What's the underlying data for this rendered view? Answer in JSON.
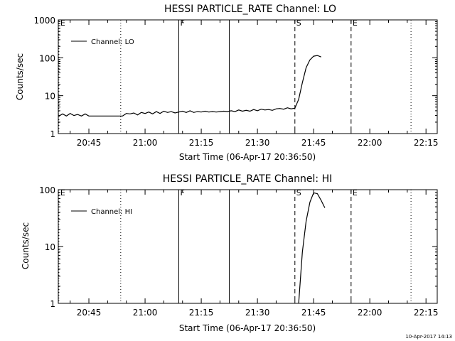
{
  "timestamp": "10-Apr-2017 14:13",
  "chart_data": [
    {
      "type": "line",
      "title": "HESSI PARTICLE_RATE Channel: LO",
      "xlabel": "Start Time (06-Apr-17 20:36:50)",
      "ylabel": "Counts/sec",
      "y_scale": "log",
      "ylim": [
        1,
        1000
      ],
      "xlim": [
        "20:36:50",
        "22:18:00"
      ],
      "x_tick_labels": [
        "20:45",
        "21:00",
        "21:15",
        "21:30",
        "21:45",
        "22:00",
        "22:15"
      ],
      "y_tick_labels": [
        "1",
        "10",
        "100",
        "1000"
      ],
      "legend": {
        "label": "Channel: LO",
        "placement": "top-left"
      },
      "markers": [
        {
          "time": "20:37:00",
          "label": "E",
          "style": "dotted"
        },
        {
          "time": "20:53:30",
          "label": "",
          "style": "dotted"
        },
        {
          "time": "21:09:00",
          "label": "F",
          "style": "solid"
        },
        {
          "time": "21:22:30",
          "label": "",
          "style": "solid"
        },
        {
          "time": "21:40:00",
          "label": "S",
          "style": "dashed"
        },
        {
          "time": "21:55:00",
          "label": "E",
          "style": "dashed"
        },
        {
          "time": "22:11:00",
          "label": "",
          "style": "dotted"
        }
      ],
      "series": [
        {
          "x": [
            "20:37",
            "20:38",
            "20:39",
            "20:40",
            "20:41",
            "20:42",
            "20:43",
            "20:44",
            "20:45",
            "20:46",
            "20:47",
            "20:48",
            "20:49",
            "20:50",
            "20:51",
            "20:52",
            "20:53",
            "20:54",
            "20:55",
            "20:56",
            "20:57",
            "20:58",
            "20:59",
            "21:00",
            "21:01",
            "21:02",
            "21:03",
            "21:04",
            "21:05",
            "21:06",
            "21:07",
            "21:08",
            "21:09",
            "21:10",
            "21:11",
            "21:12",
            "21:13",
            "21:14",
            "21:15",
            "21:16",
            "21:17",
            "21:18",
            "21:19",
            "21:20",
            "21:21",
            "21:22",
            "21:23",
            "21:24",
            "21:25",
            "21:26",
            "21:27",
            "21:28",
            "21:29",
            "21:30",
            "21:31",
            "21:32",
            "21:33",
            "21:34",
            "21:35",
            "21:36",
            "21:37",
            "21:38",
            "21:39",
            "21:40",
            "21:41",
            "21:42",
            "21:43",
            "21:44",
            "21:45",
            "21:46",
            "21:47"
          ],
          "values": [
            2.9,
            3.3,
            2.9,
            3.4,
            3.0,
            3.2,
            2.9,
            3.3,
            2.9,
            2.9,
            2.9,
            2.9,
            2.9,
            2.9,
            2.9,
            2.9,
            2.9,
            2.9,
            3.4,
            3.3,
            3.5,
            3.1,
            3.6,
            3.4,
            3.7,
            3.3,
            3.8,
            3.4,
            3.9,
            3.6,
            3.8,
            3.5,
            3.7,
            3.9,
            3.6,
            4.0,
            3.6,
            3.8,
            3.7,
            3.9,
            3.7,
            3.8,
            3.7,
            3.8,
            3.9,
            3.8,
            4.0,
            3.8,
            4.2,
            3.9,
            4.1,
            3.9,
            4.3,
            4.0,
            4.4,
            4.2,
            4.3,
            4.1,
            4.5,
            4.6,
            4.4,
            4.8,
            4.5,
            4.7,
            8.0,
            22,
            55,
            88,
            110,
            115,
            105
          ]
        }
      ]
    },
    {
      "type": "line",
      "title": "HESSI PARTICLE_RATE Channel: HI",
      "xlabel": "Start Time (06-Apr-17 20:36:50)",
      "ylabel": "Counts/sec",
      "y_scale": "log",
      "ylim": [
        1,
        100
      ],
      "xlim": [
        "20:36:50",
        "22:18:00"
      ],
      "x_tick_labels": [
        "20:45",
        "21:00",
        "21:15",
        "21:30",
        "21:45",
        "22:00",
        "22:15"
      ],
      "y_tick_labels": [
        "1",
        "10",
        "100"
      ],
      "legend": {
        "label": "Channel: HI",
        "placement": "top-left"
      },
      "markers": [
        {
          "time": "20:37:00",
          "label": "E",
          "style": "dotted"
        },
        {
          "time": "20:53:30",
          "label": "",
          "style": "dotted"
        },
        {
          "time": "21:09:00",
          "label": "F",
          "style": "solid"
        },
        {
          "time": "21:22:30",
          "label": "",
          "style": "solid"
        },
        {
          "time": "21:40:00",
          "label": "S",
          "style": "dashed"
        },
        {
          "time": "21:55:00",
          "label": "E",
          "style": "dashed"
        },
        {
          "time": "22:11:00",
          "label": "",
          "style": "dotted"
        }
      ],
      "series": [
        {
          "x": [
            "21:41",
            "21:42",
            "21:43",
            "21:44",
            "21:45",
            "21:46",
            "21:47",
            "21:48"
          ],
          "values": [
            1.0,
            8.0,
            28,
            60,
            88,
            85,
            65,
            48
          ]
        }
      ]
    }
  ]
}
